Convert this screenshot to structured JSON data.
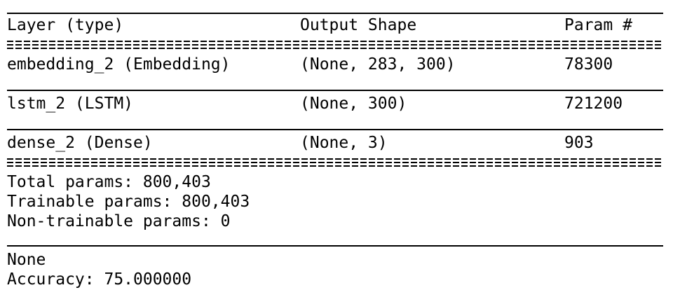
{
  "summary": {
    "headers": {
      "layer": "Layer (type)",
      "output": "Output Shape",
      "params": "Param #"
    },
    "rows": [
      {
        "layer": "embedding_2 (Embedding)",
        "output": "(None, 283, 300)",
        "params": "78300"
      },
      {
        "layer": "lstm_2 (LSTM)",
        "output": "(None, 300)",
        "params": "721200"
      },
      {
        "layer": "dense_2 (Dense)",
        "output": "(None, 3)",
        "params": "903"
      }
    ],
    "totals": {
      "total": "Total params: 800,403",
      "trainable": "Trainable params: 800,403",
      "non_trainable": "Non-trainable params: 0"
    }
  },
  "output": {
    "line1": "None",
    "line2": "Accuracy: 75.000000"
  }
}
